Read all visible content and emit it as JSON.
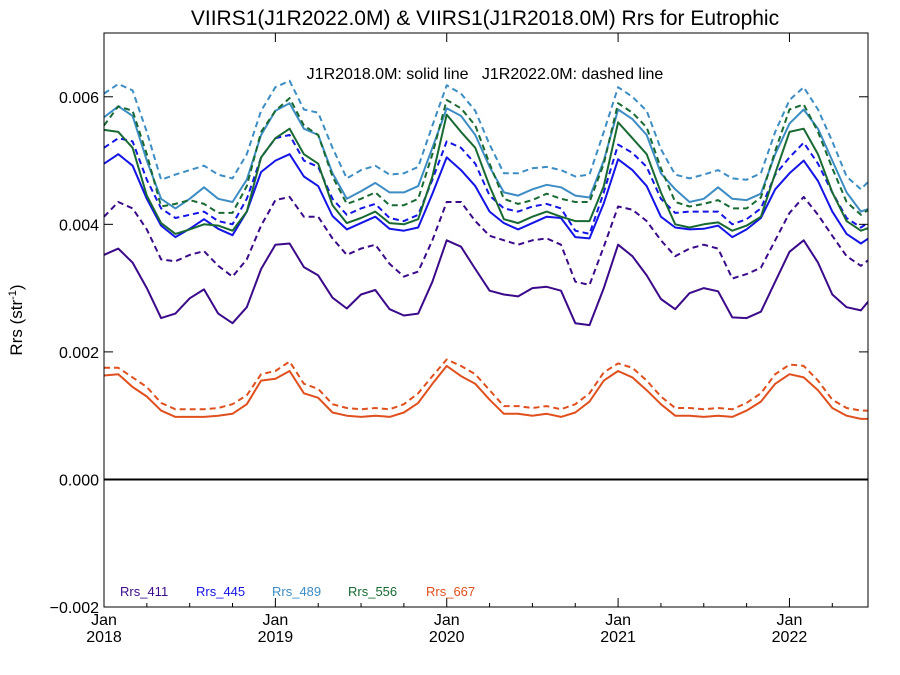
{
  "chart_data": {
    "type": "line",
    "title": "VIIRS1(J1R2022.0M) & VIIRS1(J1R2018.0M)  Rrs for Eutrophic",
    "subtitle": "J1R2018.0M: solid line   J1R2022.0M: dashed line",
    "ylabel": "Rrs (str",
    "ylabel_sup": "-1",
    "ylabel_close": ")",
    "xlabel": "",
    "ylim": [
      -0.002,
      0.007
    ],
    "xlim": [
      0,
      53.5
    ],
    "grid": false,
    "zero_line": true,
    "y_ticks": [
      {
        "value": -0.002,
        "label": "−0.002"
      },
      {
        "value": 0.0,
        "label": "0.000"
      },
      {
        "value": 0.002,
        "label": "0.002"
      },
      {
        "value": 0.004,
        "label": "0.004"
      },
      {
        "value": 0.006,
        "label": "0.006"
      }
    ],
    "x_ticks": [
      {
        "value": 0,
        "month": "Jan",
        "year": "2018"
      },
      {
        "value": 12,
        "month": "Jan",
        "year": "2019"
      },
      {
        "value": 24,
        "month": "Jan",
        "year": "2020"
      },
      {
        "value": 36,
        "month": "Jan",
        "year": "2021"
      },
      {
        "value": 48,
        "month": "Jan",
        "year": "2022"
      }
    ],
    "x_unit": "months since Jan 2018",
    "legend_position": "bottom-left",
    "series": [
      {
        "name": "Rrs_411",
        "color": "#3b0a8a",
        "solid": [
          0.00352,
          0.00362,
          0.0034,
          0.003,
          0.00253,
          0.0026,
          0.00284,
          0.00298,
          0.0026,
          0.00245,
          0.0027,
          0.0033,
          0.00368,
          0.0037,
          0.00333,
          0.0032,
          0.00285,
          0.00268,
          0.0029,
          0.00297,
          0.00267,
          0.00257,
          0.0026,
          0.0031,
          0.00375,
          0.00365,
          0.0033,
          0.00296,
          0.0029,
          0.00287,
          0.003,
          0.00302,
          0.00296,
          0.00245,
          0.00242,
          0.003,
          0.00368,
          0.0035,
          0.0032,
          0.00283,
          0.00267,
          0.00292,
          0.003,
          0.00295,
          0.00254,
          0.00253,
          0.00263,
          0.0031,
          0.00357,
          0.00375,
          0.0034,
          0.0029,
          0.0027,
          0.00265,
          0.00292
        ],
        "dashed": [
          0.00412,
          0.00435,
          0.00425,
          0.00392,
          0.00345,
          0.00342,
          0.00352,
          0.00358,
          0.00335,
          0.00318,
          0.00345,
          0.00398,
          0.00438,
          0.00443,
          0.00412,
          0.00412,
          0.00378,
          0.00352,
          0.00362,
          0.00368,
          0.00338,
          0.00318,
          0.00326,
          0.00375,
          0.00435,
          0.00435,
          0.00405,
          0.00382,
          0.00375,
          0.00368,
          0.00375,
          0.00378,
          0.00368,
          0.0031,
          0.00305,
          0.00365,
          0.00428,
          0.00423,
          0.00405,
          0.00375,
          0.0035,
          0.00362,
          0.00368,
          0.00362,
          0.00315,
          0.00322,
          0.00332,
          0.00375,
          0.00418,
          0.00443,
          0.00415,
          0.00382,
          0.0035,
          0.00335,
          0.00352
        ]
      },
      {
        "name": "Rrs_445",
        "color": "#1414e6",
        "solid": [
          0.00495,
          0.0051,
          0.00492,
          0.0044,
          0.00398,
          0.0038,
          0.00393,
          0.00408,
          0.00393,
          0.00383,
          0.0042,
          0.00482,
          0.005,
          0.0051,
          0.00475,
          0.0046,
          0.00413,
          0.00392,
          0.00402,
          0.00412,
          0.00393,
          0.0039,
          0.00395,
          0.00448,
          0.00505,
          0.00485,
          0.0046,
          0.0042,
          0.00402,
          0.00392,
          0.00402,
          0.00412,
          0.0041,
          0.0038,
          0.00378,
          0.00433,
          0.00502,
          0.00485,
          0.0046,
          0.00412,
          0.00395,
          0.00392,
          0.00393,
          0.00398,
          0.0038,
          0.00392,
          0.0041,
          0.00455,
          0.0048,
          0.005,
          0.00468,
          0.0042,
          0.00385,
          0.0037,
          0.00385
        ],
        "dashed": [
          0.0052,
          0.00535,
          0.0053,
          0.0047,
          0.00425,
          0.0041,
          0.00415,
          0.0042,
          0.00405,
          0.004,
          0.0044,
          0.00505,
          0.00535,
          0.0054,
          0.005,
          0.0049,
          0.0044,
          0.00415,
          0.00425,
          0.00432,
          0.0041,
          0.00405,
          0.00415,
          0.0047,
          0.0053,
          0.0052,
          0.00495,
          0.00445,
          0.00425,
          0.0042,
          0.00428,
          0.00432,
          0.00425,
          0.0039,
          0.00385,
          0.0045,
          0.00525,
          0.00512,
          0.0049,
          0.0044,
          0.00418,
          0.0042,
          0.0042,
          0.0042,
          0.004,
          0.00408,
          0.00425,
          0.00478,
          0.00505,
          0.00528,
          0.00495,
          0.0045,
          0.0041,
          0.00395,
          0.0041
        ]
      },
      {
        "name": "Rrs_489",
        "color": "#3d8dc4",
        "solid": [
          0.00568,
          0.00585,
          0.0057,
          0.005,
          0.0044,
          0.00425,
          0.0044,
          0.00458,
          0.0044,
          0.00435,
          0.0047,
          0.0054,
          0.00578,
          0.0059,
          0.0055,
          0.0054,
          0.0048,
          0.0044,
          0.00452,
          0.00465,
          0.0045,
          0.0045,
          0.0046,
          0.0052,
          0.00582,
          0.0057,
          0.0054,
          0.0049,
          0.0045,
          0.00445,
          0.00455,
          0.00462,
          0.00458,
          0.00445,
          0.00442,
          0.005,
          0.0058,
          0.00565,
          0.0054,
          0.0048,
          0.00455,
          0.00435,
          0.0044,
          0.00458,
          0.0044,
          0.00438,
          0.00448,
          0.0051,
          0.00558,
          0.0058,
          0.0055,
          0.005,
          0.0045,
          0.0042,
          0.00428
        ],
        "dashed": [
          0.00605,
          0.0062,
          0.0061,
          0.00545,
          0.0047,
          0.00478,
          0.00485,
          0.00492,
          0.00478,
          0.00472,
          0.0051,
          0.00578,
          0.00615,
          0.00625,
          0.0058,
          0.00575,
          0.0052,
          0.00472,
          0.00485,
          0.00492,
          0.00478,
          0.0048,
          0.0049,
          0.00555,
          0.00618,
          0.00605,
          0.00578,
          0.00525,
          0.0048,
          0.0048,
          0.00488,
          0.0049,
          0.00485,
          0.00475,
          0.00478,
          0.00545,
          0.00615,
          0.006,
          0.00578,
          0.00518,
          0.00478,
          0.00472,
          0.00478,
          0.00485,
          0.00472,
          0.0047,
          0.0048,
          0.00545,
          0.00595,
          0.00615,
          0.0058,
          0.0053,
          0.00475,
          0.00455,
          0.00478
        ]
      },
      {
        "name": "Rrs_556",
        "color": "#186a32",
        "solid": [
          0.00548,
          0.00545,
          0.0052,
          0.00445,
          0.00402,
          0.00385,
          0.00392,
          0.004,
          0.00398,
          0.0039,
          0.0042,
          0.00505,
          0.00535,
          0.0055,
          0.0051,
          0.00495,
          0.0043,
          0.00402,
          0.0041,
          0.0042,
          0.00402,
          0.004,
          0.00408,
          0.00475,
          0.00572,
          0.00545,
          0.0052,
          0.0046,
          0.00408,
          0.00402,
          0.00412,
          0.0042,
          0.00412,
          0.00405,
          0.00405,
          0.0046,
          0.0056,
          0.00535,
          0.0051,
          0.0045,
          0.004,
          0.00395,
          0.004,
          0.00403,
          0.0039,
          0.00398,
          0.00412,
          0.0048,
          0.00545,
          0.0055,
          0.0051,
          0.0045,
          0.00405,
          0.0039,
          0.00398
        ],
        "dashed": [
          0.00555,
          0.00585,
          0.00578,
          0.0051,
          0.00428,
          0.00432,
          0.00438,
          0.00432,
          0.00418,
          0.00418,
          0.0046,
          0.00545,
          0.00578,
          0.00598,
          0.00555,
          0.0054,
          0.00475,
          0.00432,
          0.0044,
          0.0045,
          0.0043,
          0.0043,
          0.0044,
          0.0051,
          0.00595,
          0.00582,
          0.00555,
          0.00495,
          0.0044,
          0.00432,
          0.00438,
          0.00448,
          0.0044,
          0.00435,
          0.00435,
          0.00495,
          0.0059,
          0.00575,
          0.00552,
          0.00488,
          0.00435,
          0.00428,
          0.00432,
          0.00438,
          0.00425,
          0.00425,
          0.00442,
          0.00515,
          0.0058,
          0.00588,
          0.00545,
          0.00488,
          0.00435,
          0.00415,
          0.0043
        ]
      },
      {
        "name": "Rrs_667",
        "color": "#e0501e",
        "solid": [
          0.00163,
          0.00165,
          0.00145,
          0.0013,
          0.00108,
          0.00098,
          0.00098,
          0.00098,
          0.001,
          0.00103,
          0.00118,
          0.00155,
          0.00158,
          0.0017,
          0.00135,
          0.00128,
          0.00105,
          0.001,
          0.00098,
          0.001,
          0.00098,
          0.00105,
          0.0012,
          0.0015,
          0.00178,
          0.00162,
          0.0015,
          0.00125,
          0.00103,
          0.00103,
          0.001,
          0.00103,
          0.00098,
          0.00105,
          0.00122,
          0.00155,
          0.0017,
          0.0016,
          0.0014,
          0.00118,
          0.001,
          0.001,
          0.00098,
          0.001,
          0.00098,
          0.00108,
          0.00122,
          0.0015,
          0.00165,
          0.0016,
          0.0014,
          0.00112,
          0.001,
          0.00095,
          0.00095
        ],
        "dashed": [
          0.00175,
          0.00175,
          0.0016,
          0.00145,
          0.0012,
          0.0011,
          0.0011,
          0.0011,
          0.00112,
          0.00118,
          0.00132,
          0.00165,
          0.0017,
          0.00185,
          0.0015,
          0.00142,
          0.00118,
          0.00112,
          0.0011,
          0.00112,
          0.0011,
          0.00118,
          0.00135,
          0.00162,
          0.00188,
          0.00178,
          0.00165,
          0.0014,
          0.00115,
          0.00115,
          0.00112,
          0.00115,
          0.0011,
          0.00118,
          0.00135,
          0.00168,
          0.00182,
          0.00175,
          0.00155,
          0.0013,
          0.00112,
          0.00112,
          0.0011,
          0.00112,
          0.0011,
          0.0012,
          0.00135,
          0.00165,
          0.0018,
          0.00178,
          0.00155,
          0.00125,
          0.00112,
          0.00108,
          0.00108
        ]
      }
    ]
  }
}
